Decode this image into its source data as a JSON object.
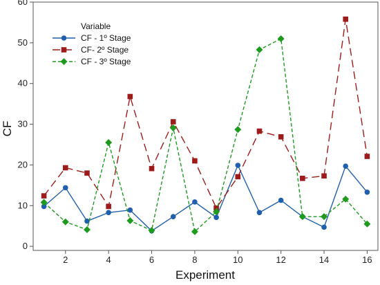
{
  "chart_data": {
    "type": "line",
    "xlabel": "Experiment",
    "ylabel": "CF",
    "xlim": [
      0.5,
      16.5
    ],
    "ylim": [
      -1,
      60
    ],
    "xticks": [
      "2",
      "4",
      "6",
      "8",
      "10",
      "12",
      "14",
      "16"
    ],
    "yticks": [
      "0",
      "10",
      "20",
      "30",
      "40",
      "50",
      "60"
    ],
    "grid": false,
    "legend": {
      "title": "Variable",
      "placement": "top-left"
    },
    "x": [
      1,
      2,
      3,
      4,
      5,
      6,
      7,
      8,
      9,
      10,
      11,
      12,
      13,
      14,
      15,
      16
    ],
    "series": [
      {
        "name": "CF - 1º Stage",
        "color": "#1f5fad",
        "marker": "circle",
        "line": "solid",
        "values": [
          9.8,
          14.4,
          6.2,
          8.3,
          8.9,
          3.8,
          7.3,
          10.9,
          7.1,
          19.9,
          8.3,
          11.3,
          7.3,
          4.7,
          19.7,
          13.3
        ]
      },
      {
        "name": "CF- 2º Stage",
        "color": "#9e1b1b",
        "marker": "square",
        "line": "longdash",
        "values": [
          12.4,
          19.3,
          18.0,
          9.8,
          36.8,
          19.1,
          30.6,
          21.0,
          9.4,
          17.1,
          28.3,
          26.9,
          16.7,
          17.3,
          55.8,
          22.1
        ]
      },
      {
        "name": "CF - 3º Stage",
        "color": "#1e9a1e",
        "marker": "diamond",
        "line": "dashed",
        "values": [
          10.8,
          6.0,
          4.1,
          25.5,
          6.3,
          3.9,
          29.1,
          3.6,
          8.5,
          28.7,
          48.3,
          51.0,
          7.3,
          7.3,
          11.6,
          5.5
        ]
      }
    ]
  }
}
